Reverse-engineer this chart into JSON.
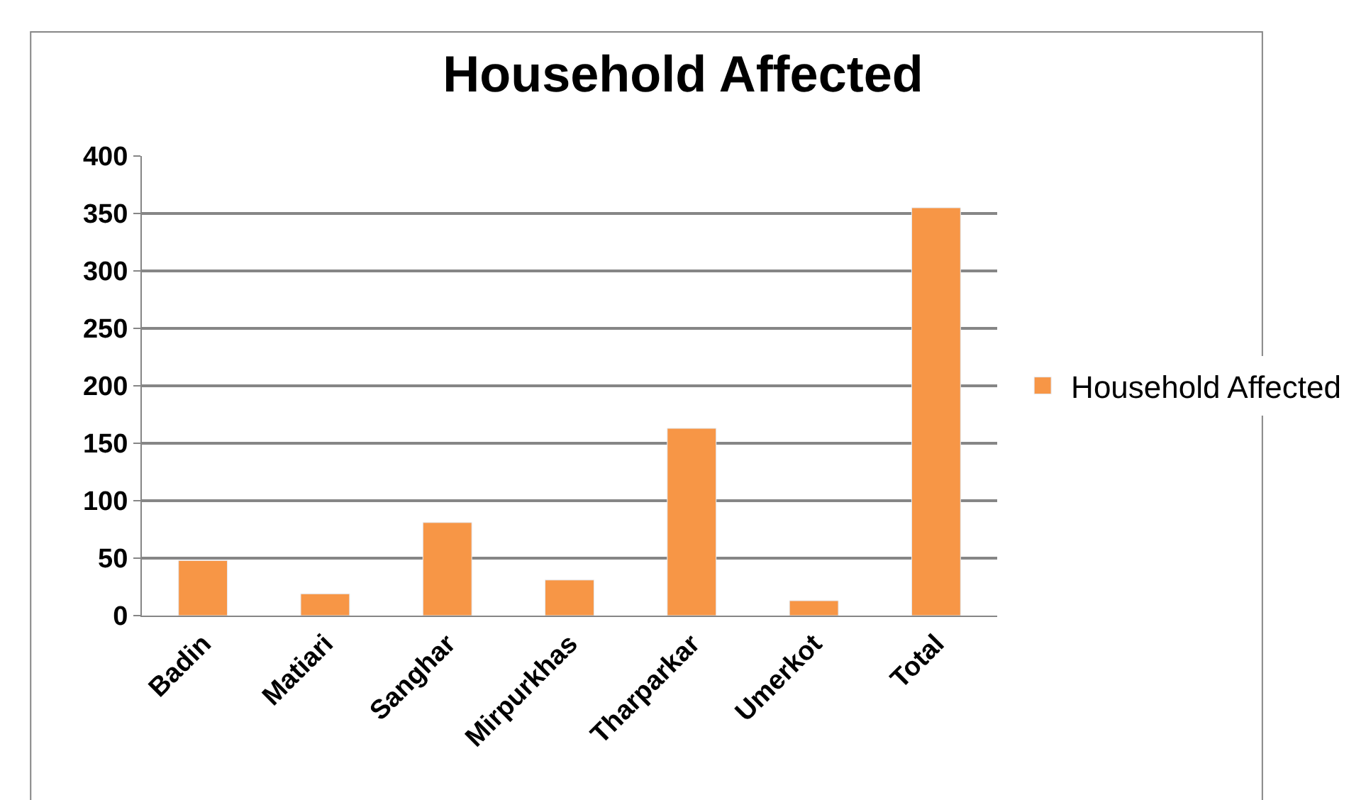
{
  "chart_data": {
    "type": "bar",
    "title": "Household Affected",
    "categories": [
      "Badin",
      "Matiari",
      "Sanghar",
      "Mirpurkhas",
      "Tharparkar",
      "Umerkot",
      "Total"
    ],
    "series": [
      {
        "name": "Household Affected",
        "color": "#f79646",
        "values": [
          48,
          19,
          81,
          31,
          163,
          13,
          355
        ]
      }
    ],
    "ylim": [
      0,
      400
    ],
    "yticks": [
      0,
      50,
      100,
      150,
      200,
      250,
      300,
      350,
      400
    ],
    "grid": "y",
    "legend": "right"
  }
}
